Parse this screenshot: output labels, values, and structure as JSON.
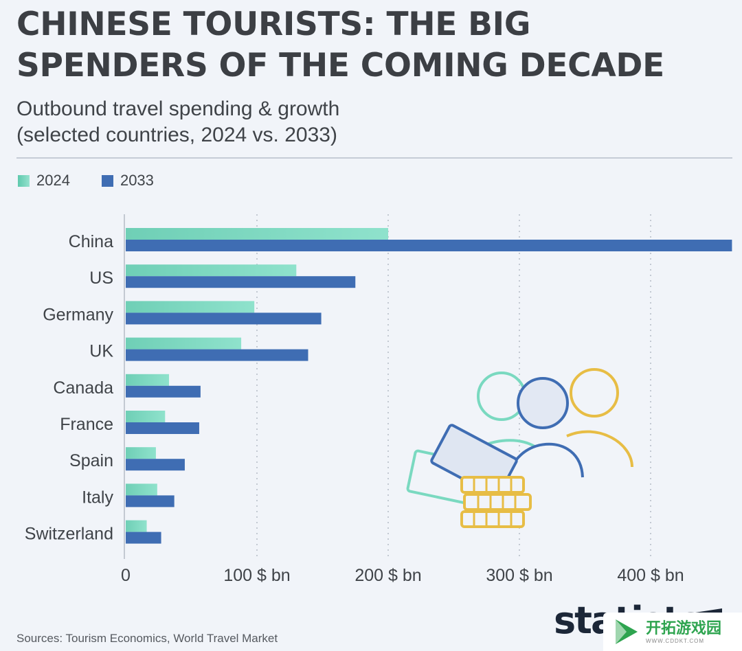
{
  "header": {
    "title": "CHINESE TOURISTS: THE BIG\nSPENDERS OF THE COMING DECADE",
    "subtitle": "Outbound travel spending & growth\n(selected countries, 2024 vs. 2033)"
  },
  "legend": {
    "items": [
      {
        "label": "2024",
        "color": "#7ad9c0"
      },
      {
        "label": "2033",
        "color": "#3f6db3"
      }
    ]
  },
  "chart_data": {
    "type": "bar",
    "orientation": "horizontal",
    "title": "CHINESE TOURISTS: THE BIG SPENDERS OF THE COMING DECADE",
    "subtitle": "Outbound travel spending & growth (selected countries, 2024 vs. 2033)",
    "categories": [
      "China",
      "US",
      "Germany",
      "UK",
      "Canada",
      "France",
      "Spain",
      "Italy",
      "Switzerland"
    ],
    "series": [
      {
        "name": "2024",
        "color": "#7ad9c0",
        "values": [
          200,
          130,
          98,
          88,
          33,
          30,
          23,
          24,
          16
        ]
      },
      {
        "name": "2033",
        "color": "#3f6db3",
        "values": [
          462,
          175,
          149,
          139,
          57,
          56,
          45,
          37,
          27
        ]
      }
    ],
    "xlim": [
      0,
      462
    ],
    "xticks": [
      0,
      100,
      200,
      300,
      400
    ],
    "xtick_labels": [
      "0",
      "100 $ bn",
      "200 $ bn",
      "300 $ bn",
      "400 $ bn"
    ],
    "grid": true,
    "legend_position": "top-left"
  },
  "footer": {
    "source": "Sources: Tourism Economics, World Travel Market",
    "logo": "statista"
  },
  "badge": {
    "name": "开拓游戏园",
    "url": "WWW.CDDKT.COM"
  },
  "icons": [
    "people-money-illustration",
    "statista-logo-icon",
    "play-badge-icon"
  ]
}
